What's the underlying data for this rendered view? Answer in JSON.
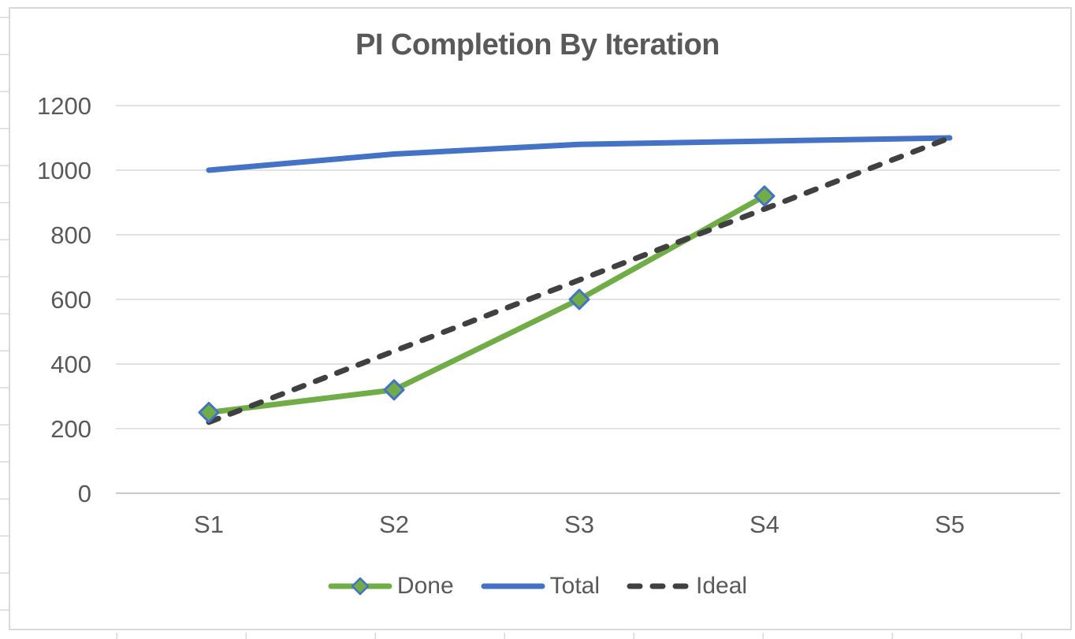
{
  "colors": {
    "done_green": "#70AD47",
    "total_blue": "#4472C4",
    "ideal_dark": "#404040",
    "marker_border_blue": "#4472C4",
    "text_gray": "#595959",
    "gridline_gray": "#D9D9D9",
    "axis_line_gray": "#C9C9C9",
    "sheet_tick_gray": "#D9D9D9"
  },
  "chart_data": {
    "type": "line",
    "title": "PI Completion By Iteration",
    "categories": [
      "S1",
      "S2",
      "S3",
      "S4",
      "S5"
    ],
    "series": [
      {
        "name": "Done",
        "values": [
          250,
          320,
          600,
          920,
          null
        ],
        "color": "#70AD47",
        "style": "solid",
        "marker": "diamond"
      },
      {
        "name": "Total",
        "values": [
          1000,
          1050,
          1080,
          1090,
          1100
        ],
        "color": "#4472C4",
        "style": "solid",
        "marker": "none"
      },
      {
        "name": "Ideal",
        "values": [
          220,
          440,
          660,
          880,
          1100
        ],
        "color": "#404040",
        "style": "dashed",
        "marker": "none"
      }
    ],
    "ylim": [
      0,
      1200
    ],
    "ytick_step": 200,
    "yticks": [
      0,
      200,
      400,
      600,
      800,
      1000,
      1200
    ],
    "ytick_labels": [
      "0",
      "200",
      "400",
      "600",
      "800",
      "1000",
      "1200"
    ],
    "grid": true,
    "legend_position": "bottom",
    "xlabel": "",
    "ylabel": ""
  }
}
